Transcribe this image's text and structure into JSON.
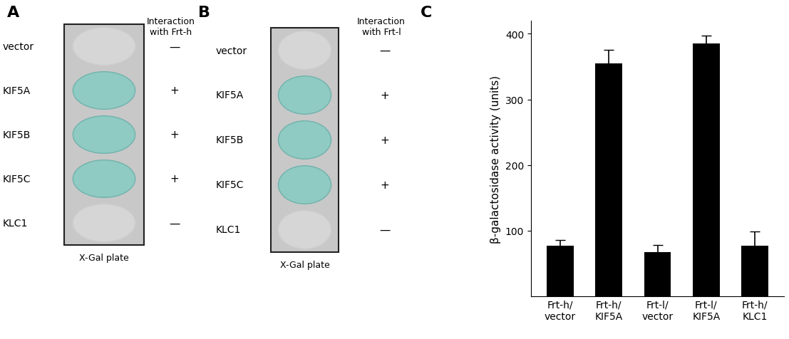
{
  "panels": [
    {
      "label": "A",
      "header": "Interaction\nwith Frt-h",
      "plate_label": "X-Gal plate",
      "rows": [
        {
          "label": "vector",
          "result": "—"
        },
        {
          "label": "KIF5A",
          "result": "+"
        },
        {
          "label": "KIF5B",
          "result": "+"
        },
        {
          "label": "KIF5C",
          "result": "+"
        },
        {
          "label": "KLC1",
          "result": "—"
        }
      ]
    },
    {
      "label": "B",
      "header": "Interaction\nwith Frt-l",
      "plate_label": "X-Gal plate",
      "rows": [
        {
          "label": "vector",
          "result": "—"
        },
        {
          "label": "KIF5A",
          "result": "+"
        },
        {
          "label": "KIF5B",
          "result": "+"
        },
        {
          "label": "KIF5C",
          "result": "+"
        },
        {
          "label": "KLC1",
          "result": "—"
        }
      ]
    }
  ],
  "chart_panel_label": "C",
  "chart_data": {
    "type": "bar",
    "y_label": "β-galactosidase activity (units)",
    "categories": [
      "Frt-h/\nvector",
      "Frt-h/\nKIF5A",
      "Frt-l/\nvector",
      "Frt-l/\nKIF5A",
      "Frt-h/\nKLC1"
    ],
    "values": [
      77,
      355,
      67,
      385,
      77
    ],
    "errors": [
      9,
      20,
      11,
      12,
      22
    ],
    "color": "#000000",
    "ylim": [
      0,
      420
    ],
    "yticks": [
      100,
      200,
      300,
      400
    ],
    "grid": false
  }
}
